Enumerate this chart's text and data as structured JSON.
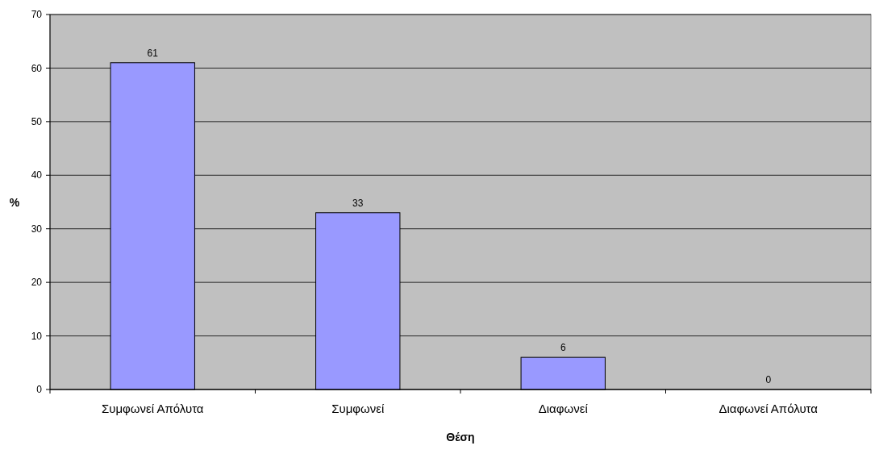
{
  "chart_data": {
    "type": "bar",
    "xlabel": "Θέση",
    "ylabel": "%",
    "categories": [
      "Συμφωνεί Απόλυτα",
      "Συμφωνεί",
      "Διαφωνεί",
      "Διαφωνεί Απόλυτα"
    ],
    "values": [
      61,
      33,
      6,
      0
    ],
    "color": "#9999ff",
    "ylim": [
      0,
      70
    ],
    "yticks": [
      0,
      10,
      20,
      30,
      40,
      50,
      60,
      70
    ],
    "grid": "y",
    "data_labels": true
  }
}
